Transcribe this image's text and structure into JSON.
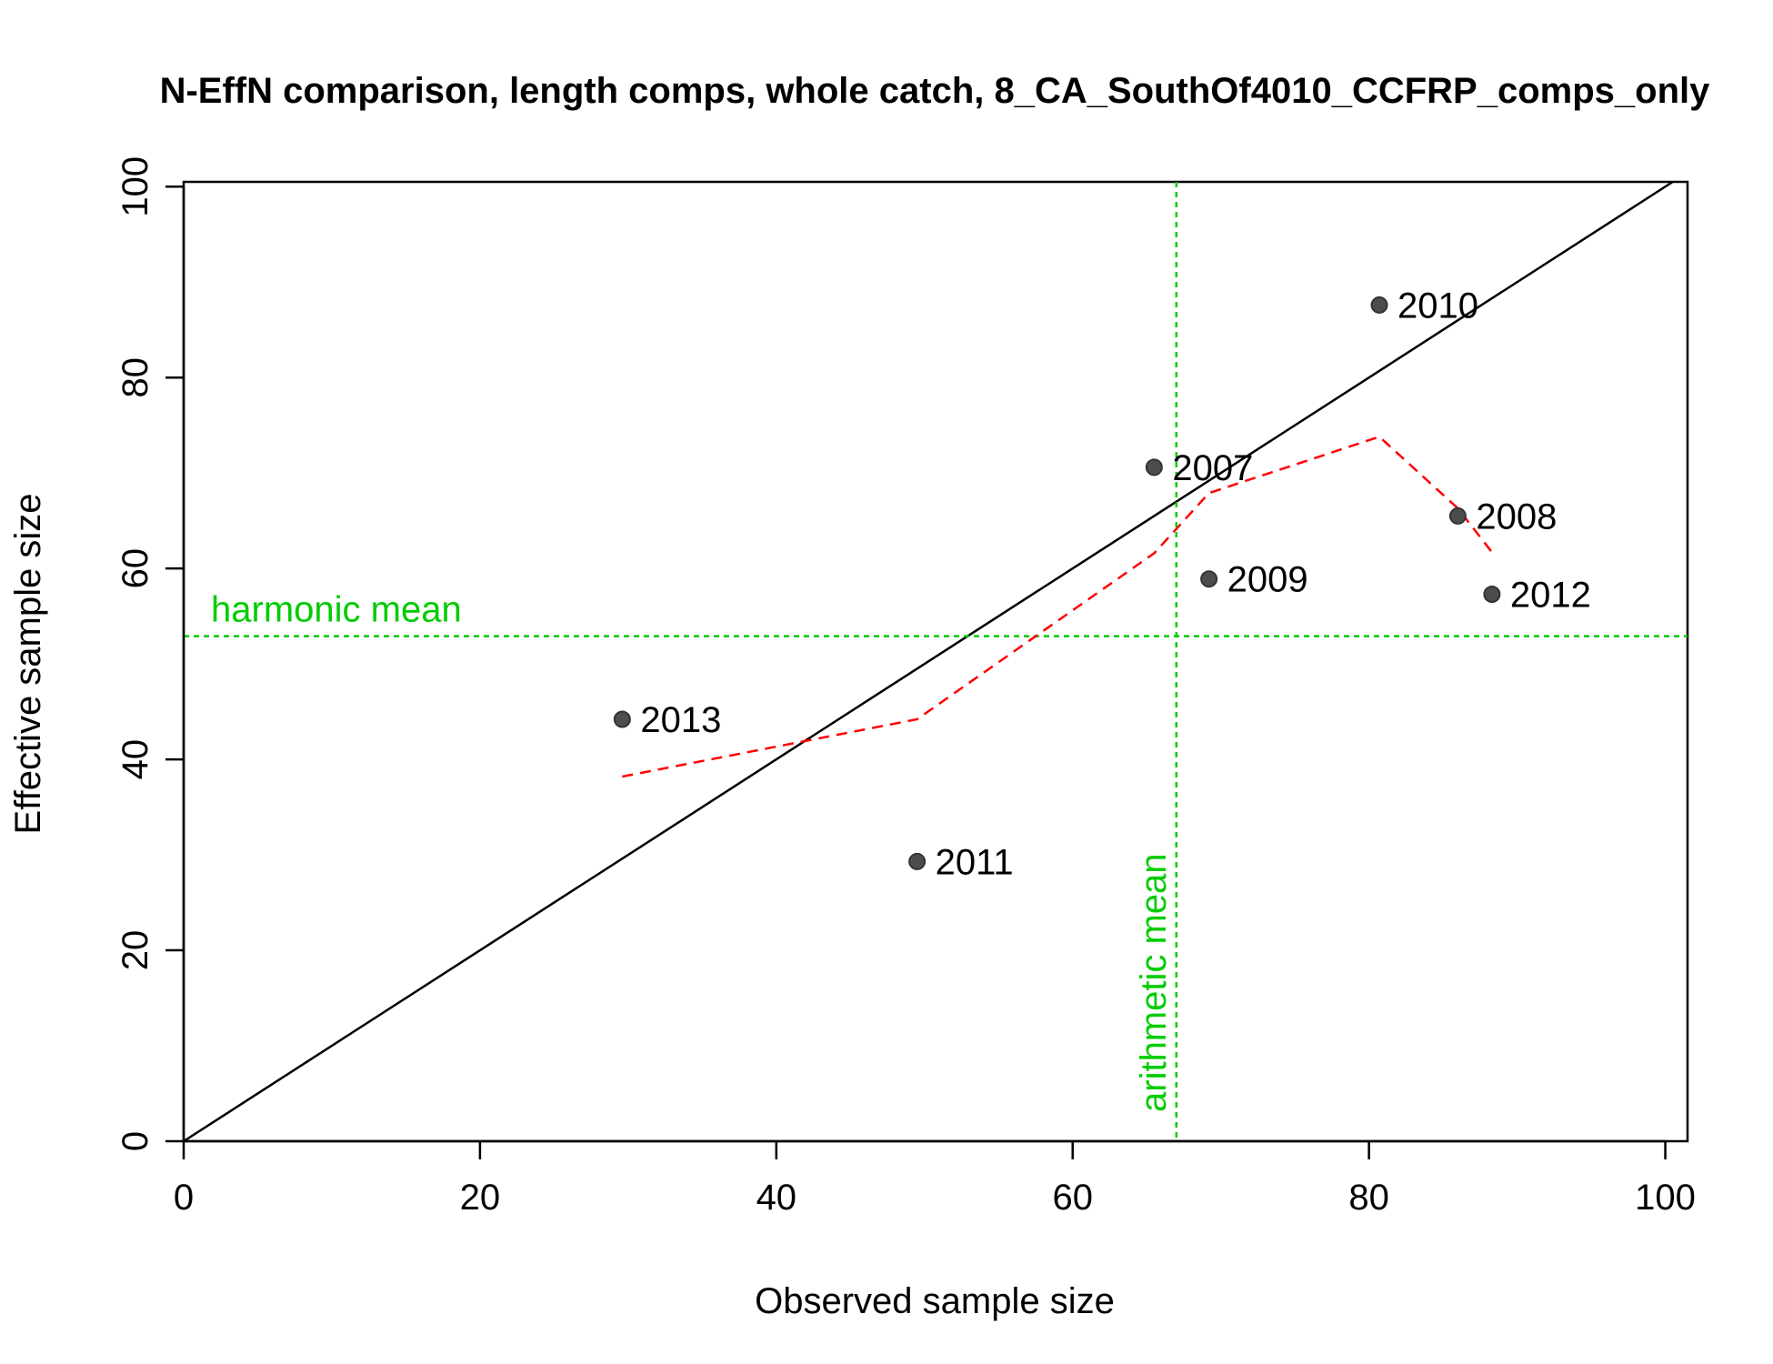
{
  "chart_data": {
    "type": "scatter",
    "title": "N-EffN comparison, length comps, whole catch, 8_CA_SouthOf4010_CCFRP_comps_only",
    "xlabel": "Observed sample size",
    "ylabel": "Effective sample size",
    "xlim": [
      0,
      101.5
    ],
    "ylim": [
      0,
      100.5
    ],
    "x_ticks": [
      "0",
      "20",
      "40",
      "60",
      "80",
      "100"
    ],
    "y_ticks": [
      "0",
      "20",
      "40",
      "60",
      "80",
      "100"
    ],
    "grid": false,
    "points": [
      {
        "label": "2007",
        "x": 65.5,
        "y": 70.6
      },
      {
        "label": "2008",
        "x": 86.0,
        "y": 65.5
      },
      {
        "label": "2009",
        "x": 69.2,
        "y": 58.9
      },
      {
        "label": "2010",
        "x": 80.7,
        "y": 87.6
      },
      {
        "label": "2011",
        "x": 49.5,
        "y": 29.3
      },
      {
        "label": "2012",
        "x": 88.3,
        "y": 57.3
      },
      {
        "label": "2013",
        "x": 29.6,
        "y": 44.2
      }
    ],
    "one_to_one_line": true,
    "smoother": {
      "color": "#ff0000",
      "style": "dashed",
      "x": [
        29.6,
        49.5,
        65.5,
        69.2,
        80.7,
        86.0,
        88.3
      ],
      "y": [
        38.2,
        44.2,
        61.6,
        67.9,
        73.8,
        66.3,
        61.7
      ]
    },
    "harmonic_mean": {
      "value": 52.9,
      "label": "harmonic mean",
      "color": "#00cc00"
    },
    "arithmetic_mean": {
      "value": 67.0,
      "label": "arithmetic mean",
      "color": "#00cc00"
    },
    "point_color": "#4d4d4d"
  }
}
